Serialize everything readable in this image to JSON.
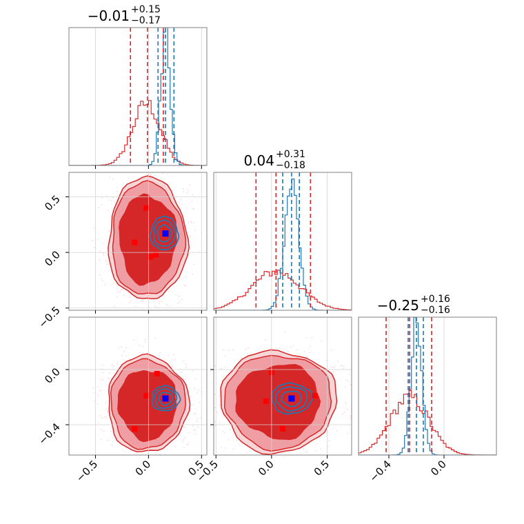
{
  "colors": {
    "red": "#d62728",
    "red_fill_outer": "#ef9fa3",
    "red_fill_inner": "#d62728",
    "blue": "#1f77b4",
    "grid": "#d3d3d3",
    "marker_red": "#ff0000",
    "marker_blue": "#0000ff"
  },
  "chart_data": {
    "type": "corner",
    "grid": true,
    "parameters": [
      {
        "range": [
          -0.75,
          0.55
        ],
        "ticks": [
          -0.5,
          0.0,
          0.5
        ],
        "tick_labels": [
          "−0.5",
          "0.0",
          "0.5"
        ]
      },
      {
        "range": [
          -0.52,
          0.72
        ],
        "ticks": [
          -0.5,
          0.0,
          0.5
        ],
        "tick_labels": [
          "−0.5",
          "0.0",
          "0.5"
        ]
      },
      {
        "range": [
          -0.62,
          0.38
        ],
        "ticks": [
          -0.4,
          0.0
        ],
        "tick_labels": [
          "−0.4",
          "0.0"
        ]
      }
    ],
    "titles": [
      {
        "main": "−0.01",
        "sup": "+0.15",
        "sub": "−0.17"
      },
      {
        "main": "0.04",
        "sup": "+0.31",
        "sub": "−0.18"
      },
      {
        "main": "−0.25",
        "sup": "+0.16",
        "sub": "−0.16"
      }
    ],
    "marginals": [
      {
        "red": {
          "mean": -0.02,
          "sd": 0.13,
          "quantiles": [
            -0.17,
            -0.01,
            0.14
          ]
        },
        "blue": {
          "mean": 0.16,
          "sd": 0.045,
          "quantiles": [
            0.09,
            0.16,
            0.24
          ]
        }
      },
      {
        "red": {
          "mean": 0.04,
          "sd": 0.22,
          "quantiles": [
            -0.14,
            0.04,
            0.35
          ]
        },
        "blue": {
          "mean": 0.18,
          "sd": 0.065,
          "quantiles": [
            0.1,
            0.18,
            0.25
          ]
        }
      },
      {
        "red": {
          "mean": -0.25,
          "sd": 0.14,
          "quantiles": [
            -0.42,
            -0.25,
            -0.09
          ]
        },
        "blue": {
          "mean": -0.2,
          "sd": 0.04,
          "quantiles": [
            -0.26,
            -0.2,
            -0.15
          ]
        }
      }
    ],
    "pairs": [
      {
        "x_param": 0,
        "y_param": 1,
        "red_center": [
          -0.01,
          0.12
        ],
        "red_radius": [
          0.37,
          0.55
        ],
        "blue_center": [
          0.15,
          0.17
        ],
        "blue_radius": [
          0.13,
          0.15
        ],
        "red_markers": [
          [
            -0.13,
            0.09
          ],
          [
            -0.02,
            0.4
          ],
          [
            0.02,
            -0.04
          ],
          [
            0.07,
            -0.02
          ]
        ],
        "blue_marker": [
          0.16,
          0.17
        ]
      },
      {
        "x_param": 0,
        "y_param": 2,
        "red_center": [
          -0.01,
          -0.25
        ],
        "red_radius": [
          0.38,
          0.35
        ],
        "blue_center": [
          0.16,
          -0.21
        ],
        "blue_radius": [
          0.13,
          0.09
        ],
        "red_markers": [
          [
            -0.13,
            -0.43
          ],
          [
            -0.02,
            -0.19
          ],
          [
            0.08,
            -0.03
          ]
        ],
        "blue_marker": [
          0.16,
          -0.21
        ]
      },
      {
        "x_param": 1,
        "y_param": 2,
        "red_center": [
          0.06,
          -0.23
        ],
        "red_radius": [
          0.52,
          0.37
        ],
        "blue_center": [
          0.18,
          -0.21
        ],
        "blue_radius": [
          0.18,
          0.11
        ],
        "red_markers": [
          [
            -0.05,
            -0.23
          ],
          [
            0.1,
            -0.43
          ],
          [
            0.39,
            -0.19
          ],
          [
            0.0,
            -0.02
          ]
        ],
        "blue_marker": [
          0.18,
          -0.21
        ]
      }
    ]
  }
}
